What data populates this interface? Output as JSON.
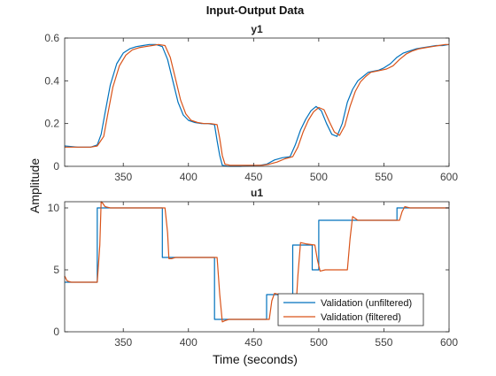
{
  "chart_data": {
    "type": "line",
    "title": "Input-Output Data",
    "xlabel": "Time (seconds)",
    "ylabel": "Amplitude",
    "legend": {
      "position": "bottom-right",
      "entries": [
        "Validation (unfiltered)",
        "Validation (filtered)"
      ]
    },
    "colors": {
      "unfiltered": "#0072BD",
      "filtered": "#D95319",
      "axes": "#262626"
    },
    "grid": false,
    "subplots": [
      {
        "title": "y1",
        "xlim": [
          305,
          600
        ],
        "ylim": [
          0,
          0.6
        ],
        "xticks": [
          350,
          400,
          450,
          500,
          550,
          600
        ],
        "yticks": [
          0,
          0.2,
          0.4,
          0.6
        ],
        "ytick_labels": [
          "0",
          "0.2",
          "0.4",
          "0.6"
        ],
        "series": [
          {
            "name": "Validation (unfiltered)",
            "x": [
              305,
              315,
              325,
              330,
              333,
              336,
              340,
              345,
              350,
              355,
              360,
              365,
              370,
              375,
              380,
              384,
              388,
              392,
              396,
              400,
              405,
              410,
              415,
              420,
              422,
              424,
              426,
              430,
              440,
              455,
              460,
              466,
              472,
              478,
              482,
              486,
              490,
              494,
              498,
              502,
              506,
              510,
              514,
              518,
              522,
              526,
              530,
              534,
              538,
              542,
              546,
              550,
              555,
              560,
              565,
              570,
              575,
              580,
              585,
              590,
              595,
              600
            ],
            "y": [
              0.095,
              0.09,
              0.09,
              0.1,
              0.15,
              0.25,
              0.38,
              0.48,
              0.53,
              0.55,
              0.56,
              0.565,
              0.57,
              0.57,
              0.56,
              0.5,
              0.4,
              0.3,
              0.24,
              0.215,
              0.205,
              0.2,
              0.2,
              0.195,
              0.12,
              0.05,
              0.005,
              0.0,
              0.0,
              0.005,
              0.01,
              0.03,
              0.04,
              0.045,
              0.1,
              0.17,
              0.22,
              0.26,
              0.28,
              0.26,
              0.2,
              0.15,
              0.14,
              0.2,
              0.3,
              0.36,
              0.4,
              0.42,
              0.44,
              0.445,
              0.45,
              0.46,
              0.48,
              0.51,
              0.53,
              0.54,
              0.55,
              0.555,
              0.56,
              0.565,
              0.565,
              0.57
            ]
          },
          {
            "name": "Validation (filtered)",
            "x": [
              305,
              315,
              325,
              330,
              335,
              338,
              342,
              347,
              352,
              357,
              362,
              367,
              372,
              377,
              382,
              386,
              390,
              394,
              398,
              402,
              407,
              412,
              417,
              422,
              424,
              426,
              428,
              432,
              442,
              457,
              462,
              468,
              474,
              480,
              484,
              488,
              492,
              496,
              500,
              504,
              508,
              512,
              516,
              520,
              524,
              528,
              532,
              536,
              540,
              544,
              548,
              552,
              557,
              562,
              567,
              572,
              577,
              582,
              587,
              592,
              597,
              600
            ],
            "y": [
              0.09,
              0.09,
              0.09,
              0.095,
              0.14,
              0.24,
              0.37,
              0.47,
              0.52,
              0.545,
              0.555,
              0.56,
              0.565,
              0.57,
              0.565,
              0.51,
              0.41,
              0.31,
              0.245,
              0.215,
              0.205,
              0.2,
              0.2,
              0.195,
              0.13,
              0.05,
              0.01,
              0.005,
              0.005,
              0.005,
              0.01,
              0.02,
              0.035,
              0.045,
              0.09,
              0.16,
              0.215,
              0.255,
              0.275,
              0.265,
              0.21,
              0.16,
              0.145,
              0.19,
              0.28,
              0.35,
              0.395,
              0.42,
              0.44,
              0.445,
              0.45,
              0.455,
              0.47,
              0.5,
              0.525,
              0.54,
              0.55,
              0.555,
              0.56,
              0.565,
              0.57,
              0.57
            ]
          }
        ]
      },
      {
        "title": "u1",
        "xlim": [
          305,
          600
        ],
        "ylim": [
          0,
          10.5
        ],
        "xticks": [
          350,
          400,
          450,
          500,
          550,
          600
        ],
        "yticks": [
          0,
          5,
          10
        ],
        "ytick_labels": [
          "0",
          "5",
          "10"
        ],
        "series": [
          {
            "name": "Validation (unfiltered)",
            "x": [
              305,
              330,
              330,
              380,
              380,
              420,
              420,
              460,
              460,
              470,
              470,
              480,
              480,
              495,
              495,
              500,
              500,
              520,
              520,
              560,
              560,
              600
            ],
            "y": [
              4,
              4,
              10,
              10,
              6,
              6,
              1,
              1,
              3,
              3,
              1,
              1,
              7,
              7,
              5,
              5,
              9,
              9,
              9,
              9,
              10,
              10
            ]
          },
          {
            "name": "Validation (filtered)",
            "x": [
              305,
              307,
              310,
              330,
              332,
              333,
              334,
              336,
              340,
              382,
              384,
              385,
              387,
              390,
              422,
              424,
              426,
              428,
              431,
              462,
              464,
              466,
              470,
              472,
              474,
              476,
              479,
              482,
              484,
              486,
              490,
              497,
              499,
              501,
              505,
              522,
              524,
              526,
              530,
              562,
              564,
              566,
              570,
              600
            ],
            "y": [
              4.5,
              4.1,
              4,
              4,
              7,
              10.5,
              10.4,
              10.1,
              10,
              10,
              8,
              5.9,
              5.9,
              6,
              6,
              3,
              0.8,
              0.9,
              1,
              1,
              2.5,
              3.1,
              3,
              3,
              2,
              0.9,
              1,
              1,
              4.5,
              7.2,
              7.1,
              7,
              5.8,
              4.9,
              5,
              5,
              7.5,
              9.3,
              9,
              9,
              9.7,
              10.1,
              10,
              10
            ]
          }
        ]
      }
    ]
  }
}
